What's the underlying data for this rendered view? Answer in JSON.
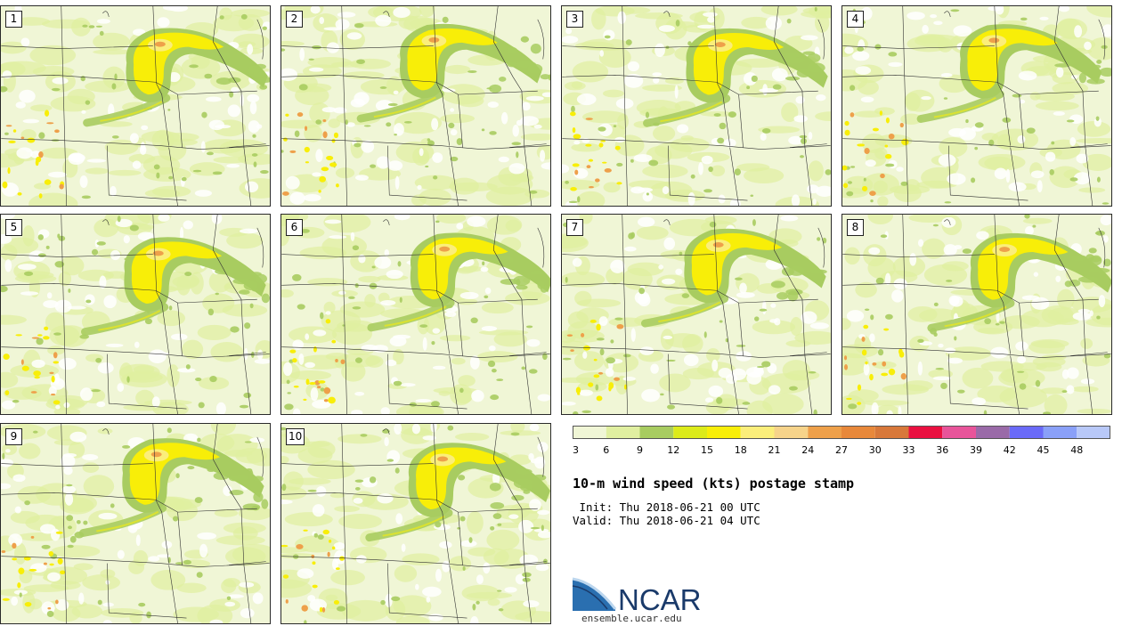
{
  "panels": [
    {
      "label": "1"
    },
    {
      "label": "2"
    },
    {
      "label": "3"
    },
    {
      "label": "4"
    },
    {
      "label": "5"
    },
    {
      "label": "6"
    },
    {
      "label": "7"
    },
    {
      "label": "8"
    },
    {
      "label": "9"
    },
    {
      "label": "10"
    }
  ],
  "colorbar": {
    "ticks": [
      "3",
      "6",
      "9",
      "12",
      "15",
      "18",
      "21",
      "24",
      "27",
      "30",
      "33",
      "36",
      "39",
      "42",
      "45",
      "48"
    ],
    "colors": [
      "#f0f6d6",
      "#e0efa0",
      "#a8cc60",
      "#dceb1a",
      "#f8ee08",
      "#fbee7a",
      "#f6d38a",
      "#eea04a",
      "#e8883a",
      "#d8783a",
      "#ea1040",
      "#e8549a",
      "#9a6aa8",
      "#6a6af8",
      "#8aa0f8",
      "#b8c8f8"
    ]
  },
  "title": "10-m wind speed (kts) postage stamp",
  "init": " Init: Thu 2018-06-21 00 UTC",
  "valid": "Valid: Thu 2018-06-21 04 UTC",
  "logo": {
    "text": "NCAR",
    "url": "ensemble.ucar.edu",
    "colors": {
      "blue": "#2a6fb0",
      "dark": "#1a3a6a"
    }
  },
  "map_colors": {
    "background": "#f0f6d6",
    "light": "#e0efa0",
    "green": "#a8cc60",
    "yellow": "#f8ee08",
    "lightyellow": "#fbee7a",
    "orange": "#eea04a",
    "white": "#ffffff",
    "border": "#333333"
  }
}
